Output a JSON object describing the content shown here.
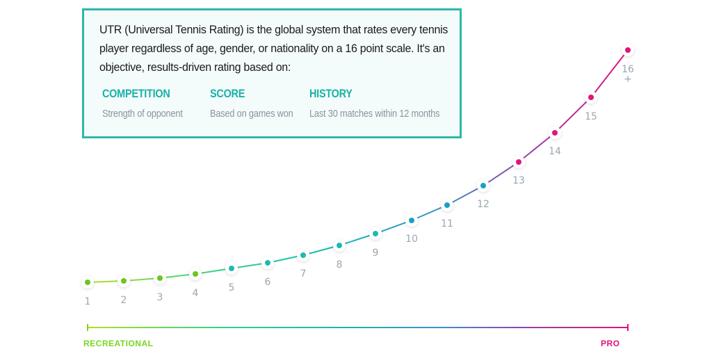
{
  "info": {
    "intro": "UTR (Universal Tennis Rating) is the global system that rates every tennis player regardless of age, gender, or nationality on a 16 point scale.  It's an objective, results-driven rating based on:",
    "factors": [
      {
        "title": "COMPETITION",
        "desc": "Strength of opponent"
      },
      {
        "title": "SCORE",
        "desc": "Based on games won"
      },
      {
        "title": "HISTORY",
        "desc": "Last 30 matches within 12 months"
      }
    ]
  },
  "scale": {
    "labels": [
      "1",
      "2",
      "3",
      "4",
      "5",
      "6",
      "7",
      "8",
      "9",
      "10",
      "11",
      "12",
      "13",
      "14",
      "15",
      "16"
    ],
    "last_suffix": "+",
    "dot_colors": [
      "#6cc61f",
      "#6cc61f",
      "#6cc61f",
      "#6cc61f",
      "#1cbab0",
      "#1cbab0",
      "#1cbab0",
      "#1cbab0",
      "#1cbab0",
      "#1aa0c8",
      "#1aa0c8",
      "#1aa0c8",
      "#e2147a",
      "#e2147a",
      "#e2147a",
      "#e2147a"
    ],
    "start_label": "RECREATIONAL",
    "end_label": "PRO",
    "start_color": "#7ad61c",
    "end_color": "#e0127e"
  }
}
